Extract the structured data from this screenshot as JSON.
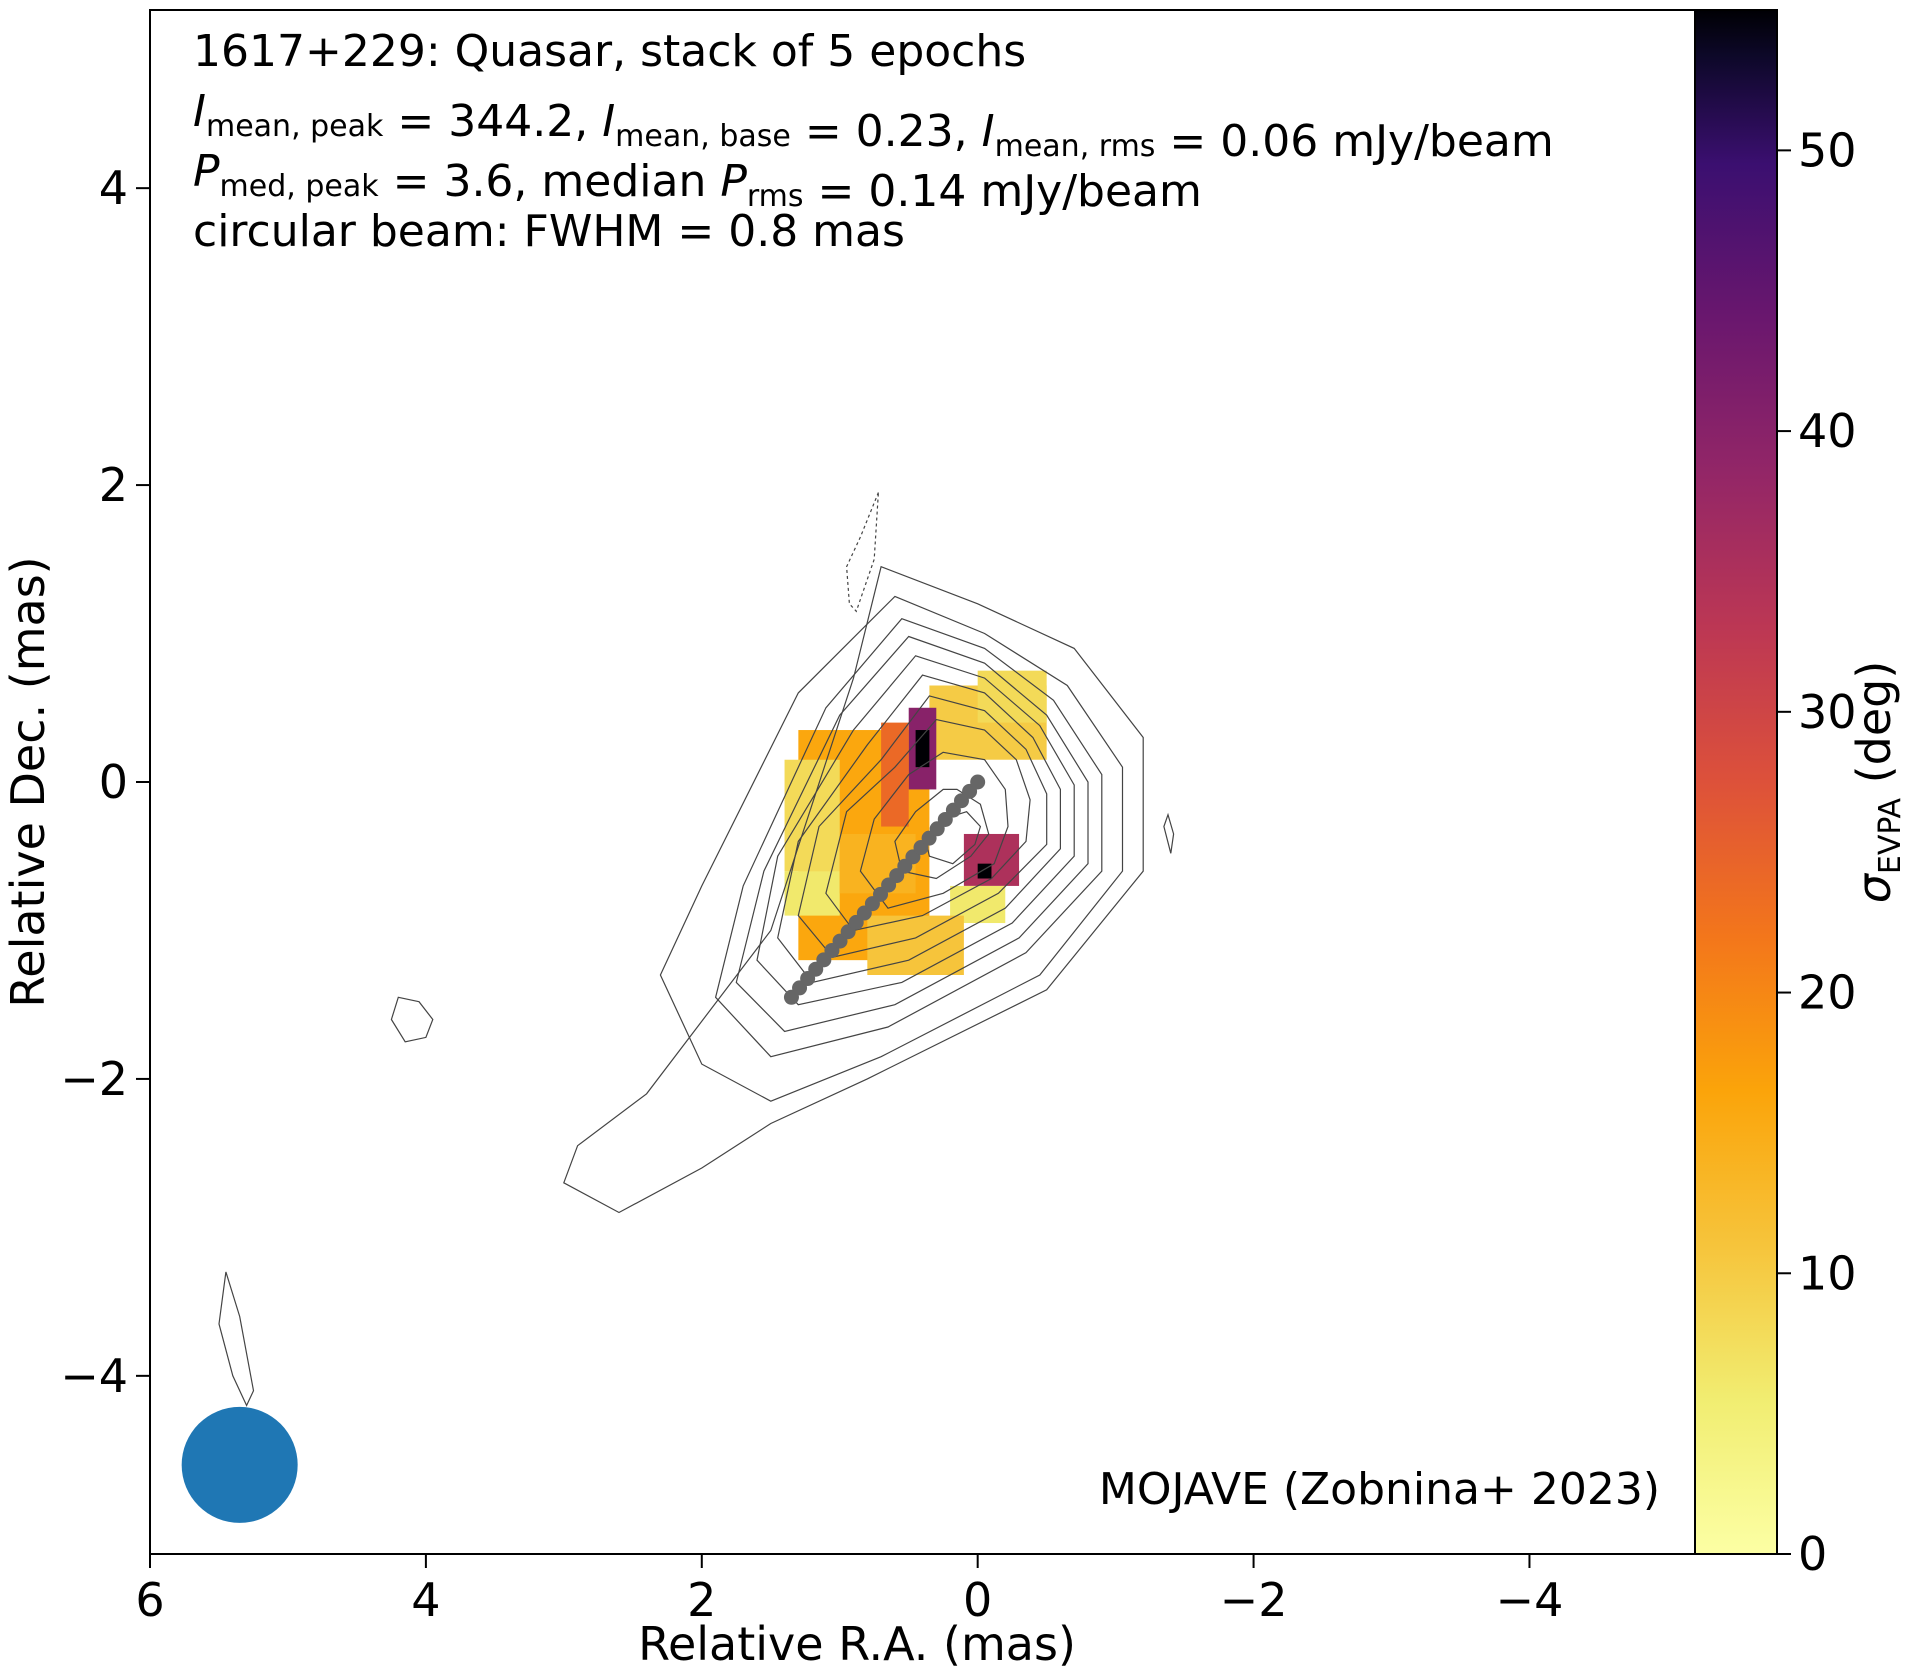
{
  "chart_data": {
    "type": "heatmap",
    "info_lines": [
      {
        "key": "line1",
        "parts": [
          {
            "t": "1617+229: Quasar, stack of 5 epochs"
          }
        ]
      },
      {
        "key": "line2",
        "parts": [
          {
            "t": "I",
            "i": true
          },
          {
            "t": "mean, peak",
            "sub": true
          },
          {
            "t": " = 344.2, "
          },
          {
            "t": "I",
            "i": true
          },
          {
            "t": "mean, base",
            "sub": true
          },
          {
            "t": " = 0.23, "
          },
          {
            "t": "I",
            "i": true
          },
          {
            "t": "mean, rms",
            "sub": true
          },
          {
            "t": " = 0.06 mJy/beam"
          }
        ]
      },
      {
        "key": "line3",
        "parts": [
          {
            "t": "P",
            "i": true
          },
          {
            "t": "med, peak",
            "sub": true
          },
          {
            "t": " = 3.6, median "
          },
          {
            "t": "P",
            "i": true
          },
          {
            "t": "rms",
            "sub": true
          },
          {
            "t": " = 0.14 mJy/beam"
          }
        ]
      },
      {
        "key": "line4",
        "parts": [
          {
            "t": "circular beam: FWHM = 0.8 mas"
          }
        ]
      }
    ],
    "credit": "MOJAVE (Zobnina+ 2023)",
    "xlabel": "Relative R.A. (mas)",
    "ylabel": "Relative Dec. (mas)",
    "xlim": [
      6,
      -5.2
    ],
    "ylim": [
      -5.2,
      5.2
    ],
    "xticks": [
      {
        "value": 6,
        "label": "6"
      },
      {
        "value": 4,
        "label": "4"
      },
      {
        "value": 2,
        "label": "2"
      },
      {
        "value": 0,
        "label": "0"
      },
      {
        "value": -2,
        "label": "−2"
      },
      {
        "value": -4,
        "label": "−4"
      }
    ],
    "yticks": [
      {
        "value": 4,
        "label": "4"
      },
      {
        "value": 2,
        "label": "2"
      },
      {
        "value": 0,
        "label": "0"
      },
      {
        "value": -2,
        "label": "−2"
      },
      {
        "value": -4,
        "label": "−4"
      }
    ],
    "colorbar": {
      "label_symbol": "σ",
      "label_sub": "EVPA",
      "label_unit": " (deg)",
      "range": [
        0,
        55
      ],
      "colormap": "inferno_r",
      "ticks": [
        {
          "value": 0,
          "label": "0"
        },
        {
          "value": 10,
          "label": "10"
        },
        {
          "value": 20,
          "label": "20"
        },
        {
          "value": 30,
          "label": "30"
        },
        {
          "value": 40,
          "label": "40"
        },
        {
          "value": 50,
          "label": "50"
        }
      ]
    },
    "beam": {
      "center_ra": 5.35,
      "center_dec": -4.6,
      "fwhm_mas": 0.8,
      "color": "#1f77b4"
    },
    "ridge_line": {
      "color": "#666666",
      "start": [
        1.35,
        -1.45
      ],
      "end": [
        0.0,
        0.0
      ],
      "count": 24
    },
    "contours": [
      {
        "ra": [
          4.05,
          4.2,
          4.25,
          4.15,
          4.0,
          3.95
        ],
        "dec": [
          -1.48,
          -1.45,
          -1.6,
          -1.75,
          -1.72,
          -1.6
        ]
      },
      {
        "ra": [
          0.72,
          0.85,
          0.95,
          0.93,
          0.88,
          0.75,
          0.72
        ],
        "dec": [
          1.95,
          1.65,
          1.45,
          1.2,
          1.15,
          1.5,
          1.95
        ]
      },
      {
        "ra": [
          -1.35,
          -1.38,
          -1.42,
          -1.4,
          -1.35
        ],
        "dec": [
          -0.3,
          -0.22,
          -0.35,
          -0.48,
          -0.3
        ]
      },
      {
        "ra": [
          5.25,
          5.35,
          5.45,
          5.5,
          5.4,
          5.3,
          5.25
        ],
        "dec": [
          -4.1,
          -3.6,
          -3.3,
          -3.65,
          -4.0,
          -4.2,
          -4.1
        ]
      },
      {
        "ra": [
          0.7,
          0.0,
          -0.7,
          -1.2,
          -1.2,
          -0.5,
          0.8,
          1.5,
          2.0,
          2.6,
          3.0,
          2.9,
          2.4,
          1.5,
          0.9,
          0.7
        ],
        "dec": [
          1.45,
          1.2,
          0.9,
          0.3,
          -0.6,
          -1.4,
          -2.0,
          -2.3,
          -2.6,
          -2.9,
          -2.7,
          -2.45,
          -2.1,
          -1.0,
          0.7,
          1.45
        ]
      },
      {
        "ra": [
          0.6,
          -0.05,
          -0.65,
          -1.05,
          -1.05,
          -0.45,
          0.7,
          1.5,
          2.0,
          2.3,
          2.0,
          1.3,
          0.6
        ],
        "dec": [
          1.25,
          1.0,
          0.65,
          0.1,
          -0.6,
          -1.3,
          -1.85,
          -2.15,
          -1.9,
          -1.3,
          -0.7,
          0.6,
          1.25
        ]
      },
      {
        "ra": [
          0.55,
          -0.05,
          -0.55,
          -0.9,
          -0.9,
          -0.35,
          0.65,
          1.5,
          1.9,
          1.7,
          1.1,
          0.55
        ],
        "dec": [
          1.1,
          0.9,
          0.55,
          0.05,
          -0.6,
          -1.15,
          -1.65,
          -1.85,
          -1.45,
          -0.7,
          0.5,
          1.1
        ]
      },
      {
        "ra": [
          0.5,
          -0.05,
          -0.5,
          -0.8,
          -0.8,
          -0.3,
          0.6,
          1.4,
          1.75,
          1.55,
          1.0,
          0.5
        ],
        "dec": [
          0.98,
          0.8,
          0.45,
          0.0,
          -0.55,
          -1.05,
          -1.5,
          -1.68,
          -1.35,
          -0.6,
          0.45,
          0.98
        ]
      },
      {
        "ra": [
          0.45,
          -0.05,
          -0.45,
          -0.7,
          -0.7,
          -0.25,
          0.55,
          1.3,
          1.6,
          1.45,
          0.9,
          0.45
        ],
        "dec": [
          0.85,
          0.7,
          0.38,
          -0.02,
          -0.5,
          -0.95,
          -1.35,
          -1.5,
          -1.2,
          -0.5,
          0.35,
          0.85
        ]
      },
      {
        "ra": [
          0.4,
          -0.05,
          -0.4,
          -0.6,
          -0.6,
          -0.2,
          0.5,
          1.2,
          1.45,
          1.3,
          0.8,
          0.4
        ],
        "dec": [
          0.72,
          0.6,
          0.3,
          -0.05,
          -0.45,
          -0.85,
          -1.2,
          -1.35,
          -1.05,
          -0.4,
          0.25,
          0.72
        ]
      },
      {
        "ra": [
          0.35,
          -0.05,
          -0.35,
          -0.5,
          -0.5,
          -0.15,
          0.45,
          1.05,
          1.3,
          1.15,
          0.7,
          0.35
        ],
        "dec": [
          0.58,
          0.48,
          0.22,
          -0.08,
          -0.42,
          -0.75,
          -1.05,
          -1.18,
          -0.9,
          -0.3,
          0.15,
          0.58
        ]
      },
      {
        "ra": [
          0.3,
          -0.05,
          -0.28,
          -0.38,
          -0.35,
          -0.1,
          0.4,
          0.9,
          1.1,
          0.95,
          0.6,
          0.3
        ],
        "dec": [
          0.42,
          0.35,
          0.15,
          -0.12,
          -0.4,
          -0.65,
          -0.9,
          -1.0,
          -0.75,
          -0.2,
          0.1,
          0.42
        ]
      },
      {
        "ra": [
          0.25,
          -0.05,
          -0.2,
          -0.22,
          -0.12,
          0.25,
          0.65,
          0.85,
          0.75,
          0.5,
          0.25
        ],
        "dec": [
          0.2,
          0.15,
          -0.05,
          -0.3,
          -0.55,
          -0.75,
          -0.85,
          -0.6,
          -0.25,
          0.05,
          0.2
        ]
      },
      {
        "ra": [
          0.15,
          -0.02,
          -0.08,
          0.05,
          0.3,
          0.55,
          0.6,
          0.45,
          0.25,
          0.15
        ],
        "dec": [
          -0.05,
          -0.15,
          -0.35,
          -0.5,
          -0.65,
          -0.6,
          -0.4,
          -0.2,
          -0.05,
          -0.05
        ]
      },
      {
        "ra": [
          0.08,
          -0.02,
          0.02,
          0.18,
          0.35,
          0.38,
          0.25,
          0.08
        ],
        "dec": [
          -0.2,
          -0.3,
          -0.42,
          -0.55,
          -0.5,
          -0.38,
          -0.25,
          -0.2
        ]
      }
    ],
    "pixel_size_mas": 0.1,
    "evpa_blocks": [
      {
        "ra": [
          1.3,
          0.35
        ],
        "dec": [
          0.35,
          -1.2
        ],
        "value": 16
      },
      {
        "ra": [
          1.4,
          1.0
        ],
        "dec": [
          0.15,
          -0.6
        ],
        "value": 8
      },
      {
        "ra": [
          1.4,
          1.0
        ],
        "dec": [
          -0.6,
          -0.9
        ],
        "value": 6
      },
      {
        "ra": [
          0.35,
          -0.5
        ],
        "dec": [
          0.65,
          0.15
        ],
        "value": 10
      },
      {
        "ra": [
          0.0,
          -0.5
        ],
        "dec": [
          0.75,
          0.4
        ],
        "value": 8
      },
      {
        "ra": [
          0.5,
          0.3
        ],
        "dec": [
          0.5,
          -0.05
        ],
        "value": 40
      },
      {
        "ra": [
          0.45,
          0.35
        ],
        "dec": [
          0.35,
          0.1
        ],
        "value": 55
      },
      {
        "ra": [
          0.7,
          0.5
        ],
        "dec": [
          0.4,
          -0.3
        ],
        "value": 24
      },
      {
        "ra": [
          0.1,
          -0.3
        ],
        "dec": [
          -0.35,
          -0.7
        ],
        "value": 35
      },
      {
        "ra": [
          0.0,
          -0.1
        ],
        "dec": [
          -0.55,
          -0.65
        ],
        "value": 55
      },
      {
        "ra": [
          0.2,
          -0.2
        ],
        "dec": [
          -0.7,
          -0.95
        ],
        "value": 6
      },
      {
        "ra": [
          0.8,
          0.1
        ],
        "dec": [
          -0.9,
          -1.3
        ],
        "value": 11
      },
      {
        "ra": [
          1.0,
          0.45
        ],
        "dec": [
          -0.35,
          -0.75
        ],
        "value": 14
      }
    ]
  }
}
